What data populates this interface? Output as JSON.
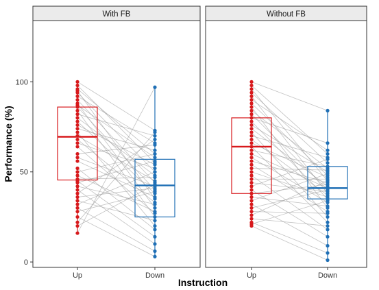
{
  "chart_data": {
    "type": "box",
    "xlabel": "Instruction",
    "ylabel": "Performance (%)",
    "ylim": [
      -3,
      134
    ],
    "yticks": [
      0,
      50,
      100
    ],
    "categories": [
      "Up",
      "Down"
    ],
    "colors": {
      "Up": "#d7191c",
      "Down": "#1f6fb5"
    },
    "paired_lines": true,
    "panels": [
      {
        "title": "With FB",
        "boxes": [
          {
            "category": "Up",
            "q1": 45.5,
            "median": 69.5,
            "q3": 86,
            "whisker_low": 16,
            "whisker_high": 100
          },
          {
            "category": "Down",
            "q1": 25,
            "median": 42.5,
            "q3": 57,
            "whisker_low": 3,
            "whisker_high": 97
          }
        ],
        "pairs": [
          [
            100,
            73
          ],
          [
            98,
            55
          ],
          [
            96,
            60
          ],
          [
            95,
            35
          ],
          [
            94,
            50
          ],
          [
            92,
            66
          ],
          [
            90,
            44
          ],
          [
            88,
            30
          ],
          [
            87,
            58
          ],
          [
            86,
            40
          ],
          [
            84,
            25
          ],
          [
            82,
            70
          ],
          [
            80,
            48
          ],
          [
            78,
            38
          ],
          [
            76,
            54
          ],
          [
            74,
            62
          ],
          [
            72,
            20
          ],
          [
            70,
            45
          ],
          [
            68,
            33
          ],
          [
            66,
            52
          ],
          [
            64,
            27
          ],
          [
            60,
            65
          ],
          [
            58,
            42
          ],
          [
            56,
            36
          ],
          [
            52,
            18
          ],
          [
            50,
            60
          ],
          [
            48,
            28
          ],
          [
            46,
            47
          ],
          [
            45,
            14
          ],
          [
            44,
            56
          ],
          [
            42,
            32
          ],
          [
            40,
            10
          ],
          [
            38,
            68
          ],
          [
            36,
            41
          ],
          [
            34,
            23
          ],
          [
            32,
            50
          ],
          [
            30,
            6
          ],
          [
            28,
            39
          ],
          [
            25,
            3
          ],
          [
            22,
            72
          ],
          [
            20,
            43
          ],
          [
            16,
            97
          ]
        ]
      },
      {
        "title": "Without FB",
        "boxes": [
          {
            "category": "Up",
            "q1": 38,
            "median": 64,
            "q3": 80,
            "whisker_low": 20,
            "whisker_high": 100
          },
          {
            "category": "Down",
            "q1": 35,
            "median": 41,
            "q3": 53,
            "whisker_low": 1,
            "whisker_high": 84
          }
        ],
        "pairs": [
          [
            100,
            84
          ],
          [
            98,
            60
          ],
          [
            96,
            45
          ],
          [
            94,
            55
          ],
          [
            92,
            38
          ],
          [
            90,
            62
          ],
          [
            88,
            48
          ],
          [
            86,
            30
          ],
          [
            84,
            52
          ],
          [
            82,
            40
          ],
          [
            80,
            66
          ],
          [
            78,
            35
          ],
          [
            76,
            50
          ],
          [
            74,
            42
          ],
          [
            72,
            25
          ],
          [
            70,
            58
          ],
          [
            68,
            37
          ],
          [
            66,
            47
          ],
          [
            64,
            22
          ],
          [
            62,
            53
          ],
          [
            60,
            41
          ],
          [
            58,
            33
          ],
          [
            56,
            44
          ],
          [
            54,
            28
          ],
          [
            52,
            51
          ],
          [
            50,
            36
          ],
          [
            48,
            18
          ],
          [
            46,
            46
          ],
          [
            44,
            39
          ],
          [
            42,
            57
          ],
          [
            40,
            14
          ],
          [
            38,
            43
          ],
          [
            36,
            31
          ],
          [
            34,
            49
          ],
          [
            32,
            9
          ],
          [
            30,
            40
          ],
          [
            28,
            27
          ],
          [
            26,
            45
          ],
          [
            24,
            20
          ],
          [
            22,
            5
          ],
          [
            21,
            34
          ],
          [
            20,
            1
          ]
        ]
      }
    ]
  }
}
